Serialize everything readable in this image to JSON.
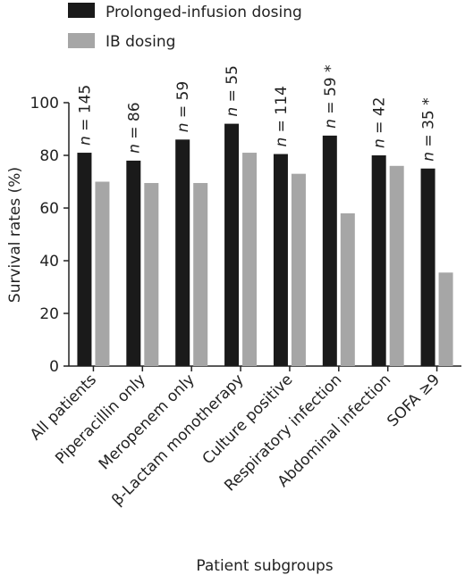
{
  "chart_data": {
    "type": "bar",
    "xlabel": "Patient subgroups",
    "ylabel": "Survival rates (%)",
    "ylim": [
      0,
      100
    ],
    "yticks": [
      "0",
      "20",
      "40",
      "60",
      "80",
      "100"
    ],
    "legend_position": "top-left",
    "categories": [
      "All patients",
      "Piperacillin only",
      "Meropenem only",
      "β-Lactam monotherapy",
      "Culture positive",
      "Respiratory infection",
      "Abdominal infection",
      "SOFA ≥9"
    ],
    "series": [
      {
        "name": "Prolonged-infusion dosing",
        "color": "#1a1a1a",
        "values": [
          81,
          78,
          86,
          92,
          80.5,
          87.5,
          80,
          75
        ]
      },
      {
        "name": "IB dosing",
        "color": "#a6a6a6",
        "values": [
          70,
          69.5,
          69.5,
          81,
          73,
          58,
          76,
          35.5
        ]
      }
    ],
    "annotations": [
      {
        "prefix": "n",
        "text": " = 145",
        "star": ""
      },
      {
        "prefix": "n",
        "text": " = 86",
        "star": ""
      },
      {
        "prefix": "n",
        "text": " = 59",
        "star": ""
      },
      {
        "prefix": "n",
        "text": " = 55",
        "star": ""
      },
      {
        "prefix": "n",
        "text": " = 114",
        "star": ""
      },
      {
        "prefix": "n",
        "text": " = 59",
        "star": " *"
      },
      {
        "prefix": "n",
        "text": " = 42",
        "star": ""
      },
      {
        "prefix": "n",
        "text": " = 35",
        "star": " *"
      }
    ]
  }
}
